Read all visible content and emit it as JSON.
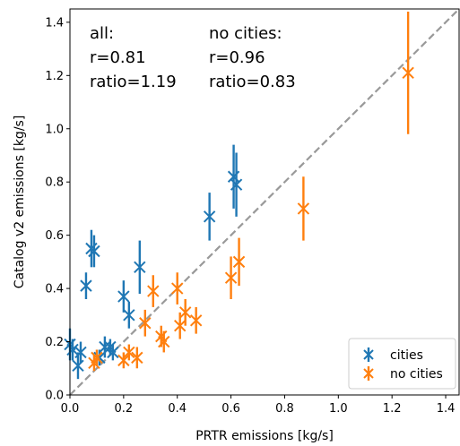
{
  "chart_data": {
    "type": "scatter",
    "xlabel": "PRTR emissions [kg/s]",
    "ylabel": "Catalog v2 emissions [kg/s]",
    "xlim": [
      0.0,
      1.45
    ],
    "ylim": [
      0.0,
      1.45
    ],
    "xticks": [
      0.0,
      0.2,
      0.4,
      0.6,
      0.8,
      1.0,
      1.2,
      1.4
    ],
    "yticks": [
      0.0,
      0.2,
      0.4,
      0.6,
      0.8,
      1.0,
      1.2,
      1.4
    ],
    "xtick_labels": [
      "0.0",
      "0.2",
      "0.4",
      "0.6",
      "0.8",
      "1.0",
      "1.2",
      "1.4"
    ],
    "ytick_labels": [
      "0.0",
      "0.2",
      "0.4",
      "0.6",
      "0.8",
      "1.0",
      "1.2",
      "1.4"
    ],
    "grid": false,
    "reference_line": {
      "style": "dashed",
      "color": "#999999",
      "slope": 1
    },
    "annotations": [
      {
        "lines": [
          "all:",
          "r=0.81",
          "ratio=1.19"
        ]
      },
      {
        "lines": [
          "no cities:",
          "r=0.96",
          "ratio=0.83"
        ]
      }
    ],
    "legend": {
      "position": "bottom-right"
    },
    "series": [
      {
        "name": "cities",
        "color": "#1f77b4",
        "marker": "x",
        "points": [
          {
            "x": 0.0,
            "y": 0.19,
            "err": 0.06
          },
          {
            "x": 0.01,
            "y": 0.17,
            "err": 0.04
          },
          {
            "x": 0.03,
            "y": 0.11,
            "err": 0.05
          },
          {
            "x": 0.04,
            "y": 0.16,
            "err": 0.04
          },
          {
            "x": 0.06,
            "y": 0.41,
            "err": 0.05
          },
          {
            "x": 0.08,
            "y": 0.55,
            "err": 0.07
          },
          {
            "x": 0.09,
            "y": 0.54,
            "err": 0.06
          },
          {
            "x": 0.11,
            "y": 0.14,
            "err": 0.03
          },
          {
            "x": 0.13,
            "y": 0.18,
            "err": 0.04
          },
          {
            "x": 0.15,
            "y": 0.18,
            "err": 0.03
          },
          {
            "x": 0.16,
            "y": 0.16,
            "err": 0.03
          },
          {
            "x": 0.2,
            "y": 0.37,
            "err": 0.06
          },
          {
            "x": 0.22,
            "y": 0.3,
            "err": 0.05
          },
          {
            "x": 0.26,
            "y": 0.48,
            "err": 0.1
          },
          {
            "x": 0.52,
            "y": 0.67,
            "err": 0.09
          },
          {
            "x": 0.61,
            "y": 0.82,
            "err": 0.12
          },
          {
            "x": 0.62,
            "y": 0.79,
            "err": 0.12
          }
        ]
      },
      {
        "name": "no cities",
        "color": "#ff7f0e",
        "marker": "x",
        "points": [
          {
            "x": 0.09,
            "y": 0.12,
            "err": 0.03
          },
          {
            "x": 0.1,
            "y": 0.14,
            "err": 0.03
          },
          {
            "x": 0.2,
            "y": 0.13,
            "err": 0.03
          },
          {
            "x": 0.22,
            "y": 0.16,
            "err": 0.03
          },
          {
            "x": 0.25,
            "y": 0.14,
            "err": 0.04
          },
          {
            "x": 0.28,
            "y": 0.27,
            "err": 0.05
          },
          {
            "x": 0.31,
            "y": 0.39,
            "err": 0.06
          },
          {
            "x": 0.34,
            "y": 0.22,
            "err": 0.04
          },
          {
            "x": 0.35,
            "y": 0.2,
            "err": 0.04
          },
          {
            "x": 0.4,
            "y": 0.4,
            "err": 0.06
          },
          {
            "x": 0.41,
            "y": 0.26,
            "err": 0.05
          },
          {
            "x": 0.43,
            "y": 0.31,
            "err": 0.05
          },
          {
            "x": 0.47,
            "y": 0.28,
            "err": 0.05
          },
          {
            "x": 0.6,
            "y": 0.44,
            "err": 0.08
          },
          {
            "x": 0.63,
            "y": 0.5,
            "err": 0.09
          },
          {
            "x": 0.87,
            "y": 0.7,
            "err": 0.12
          },
          {
            "x": 1.26,
            "y": 1.21,
            "err": 0.23
          }
        ]
      }
    ]
  }
}
